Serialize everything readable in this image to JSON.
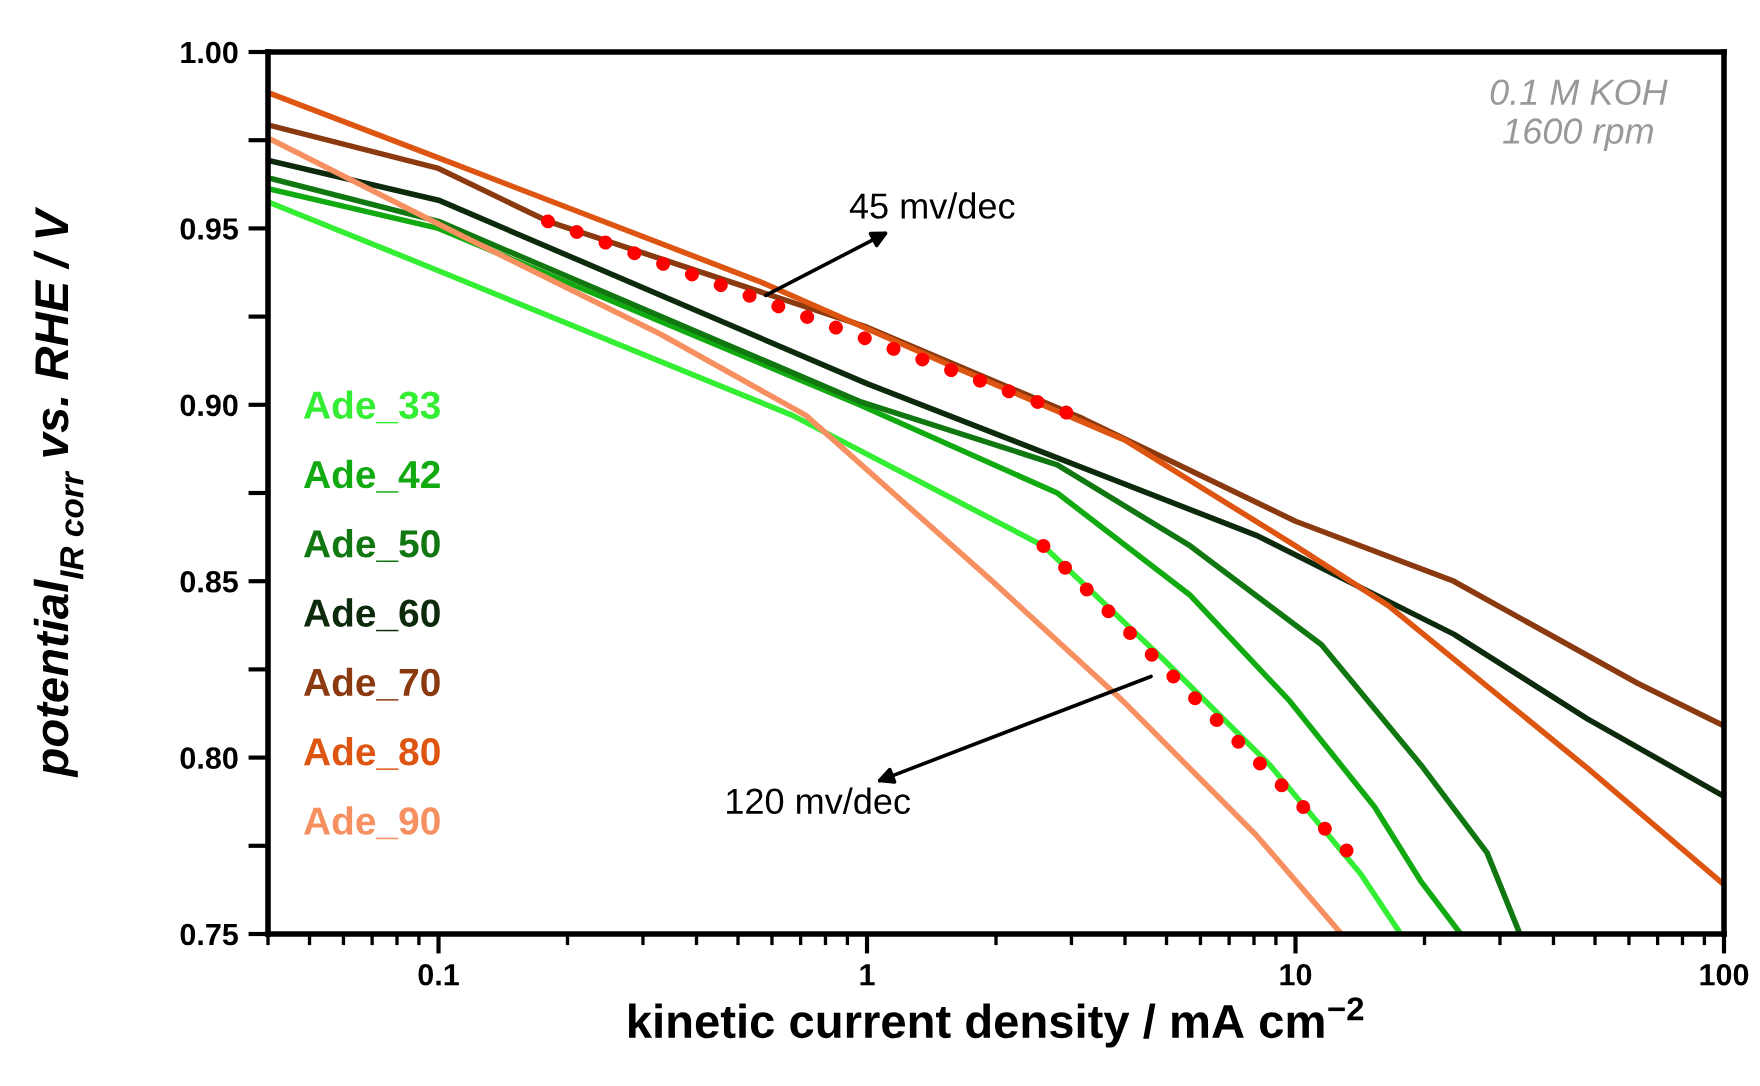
{
  "chart_data": {
    "type": "line",
    "xlabel": "kinetic current density / mA cm$^{−2}$",
    "ylabel": "potential$_{IR corr}$ vs. RHE / V",
    "log": "x",
    "xlim": [
      0.04,
      100
    ],
    "xticks": [
      0.1,
      1,
      10,
      100
    ],
    "ylim": [
      0.75,
      1.0
    ],
    "yticks": [
      0.75,
      {
        "value": 0.775,
        "label": null
      },
      {
        "value": 0.8,
        "label": "0.80"
      },
      {
        "value": 0.825,
        "label": null
      },
      0.85,
      {
        "value": 0.875,
        "label": null
      },
      {
        "value": 0.9,
        "label": "0.90"
      },
      {
        "value": 0.925,
        "label": null
      },
      0.95,
      {
        "value": 0.975,
        "label": null
      },
      {
        "value": 1.0,
        "label": "1.00"
      }
    ],
    "grid": false,
    "legend": "left",
    "series": [
      {
        "name": "Ade_33",
        "color": "#33ee33",
        "x": [
          0.041,
          0.1,
          0.67,
          2.58,
          4.9,
          8.7,
          14.2,
          17.6
        ],
        "values": [
          0.957,
          0.938,
          0.897,
          0.86,
          0.828,
          0.798,
          0.767,
          0.75
        ]
      },
      {
        "name": "Ade_42",
        "color": "#11aa11",
        "x": [
          0.041,
          0.1,
          0.96,
          2.78,
          5.68,
          9.7,
          15.3,
          19.6,
          24.3
        ],
        "values": [
          0.961,
          0.95,
          0.9,
          0.875,
          0.846,
          0.816,
          0.786,
          0.765,
          0.75
        ]
      },
      {
        "name": "Ade_50",
        "color": "#117711",
        "x": [
          0.041,
          0.1,
          0.96,
          2.78,
          5.68,
          11.5,
          19.6,
          28,
          33.4
        ],
        "values": [
          0.964,
          0.952,
          0.901,
          0.883,
          0.86,
          0.832,
          0.798,
          0.773,
          0.75
        ]
      },
      {
        "name": "Ade_60",
        "color": "#0d2a0d",
        "x": [
          0.041,
          0.1,
          1,
          8.1,
          23.4,
          48,
          100
        ],
        "values": [
          0.969,
          0.958,
          0.906,
          0.863,
          0.835,
          0.811,
          0.789
        ]
      },
      {
        "name": "Ade_70",
        "color": "#8b3a10",
        "x": [
          0.041,
          0.1,
          0.18,
          1,
          3.2,
          10,
          23.4,
          63,
          100
        ],
        "values": [
          0.979,
          0.967,
          0.952,
          0.922,
          0.896,
          0.867,
          0.85,
          0.821,
          0.809
        ]
      },
      {
        "name": "Ade_80",
        "color": "#dd5511",
        "x": [
          0.041,
          0.1,
          0.56,
          1.51,
          4,
          10,
          16.5,
          48,
          100
        ],
        "values": [
          0.988,
          0.97,
          0.935,
          0.912,
          0.89,
          0.86,
          0.843,
          0.797,
          0.764
        ]
      },
      {
        "name": "Ade_90",
        "color": "#f79060",
        "x": [
          0.041,
          0.113,
          0.33,
          0.72,
          1.96,
          3.96,
          8.1,
          12.8
        ],
        "values": [
          0.975,
          0.948,
          0.92,
          0.897,
          0.85,
          0.816,
          0.778,
          0.75
        ]
      },
      {
        "color": "#ff0000",
        "line_style": "dotted",
        "x": [
          0.18,
          3.2
        ],
        "values": [
          0.952,
          0.896
        ]
      },
      {
        "color": "#ff0000",
        "line_style": "dotted",
        "x": [
          2.58,
          14.1
        ],
        "values": [
          0.86,
          0.77
        ]
      }
    ],
    "annotations": [
      {
        "text": "45 mv/dec",
        "x": 0.58,
        "y": 0.931
      },
      {
        "text": "120 mv/dec",
        "x": 4.6,
        "y": 0.823
      },
      "0.1 M KOH\n1600 rpm"
    ]
  }
}
